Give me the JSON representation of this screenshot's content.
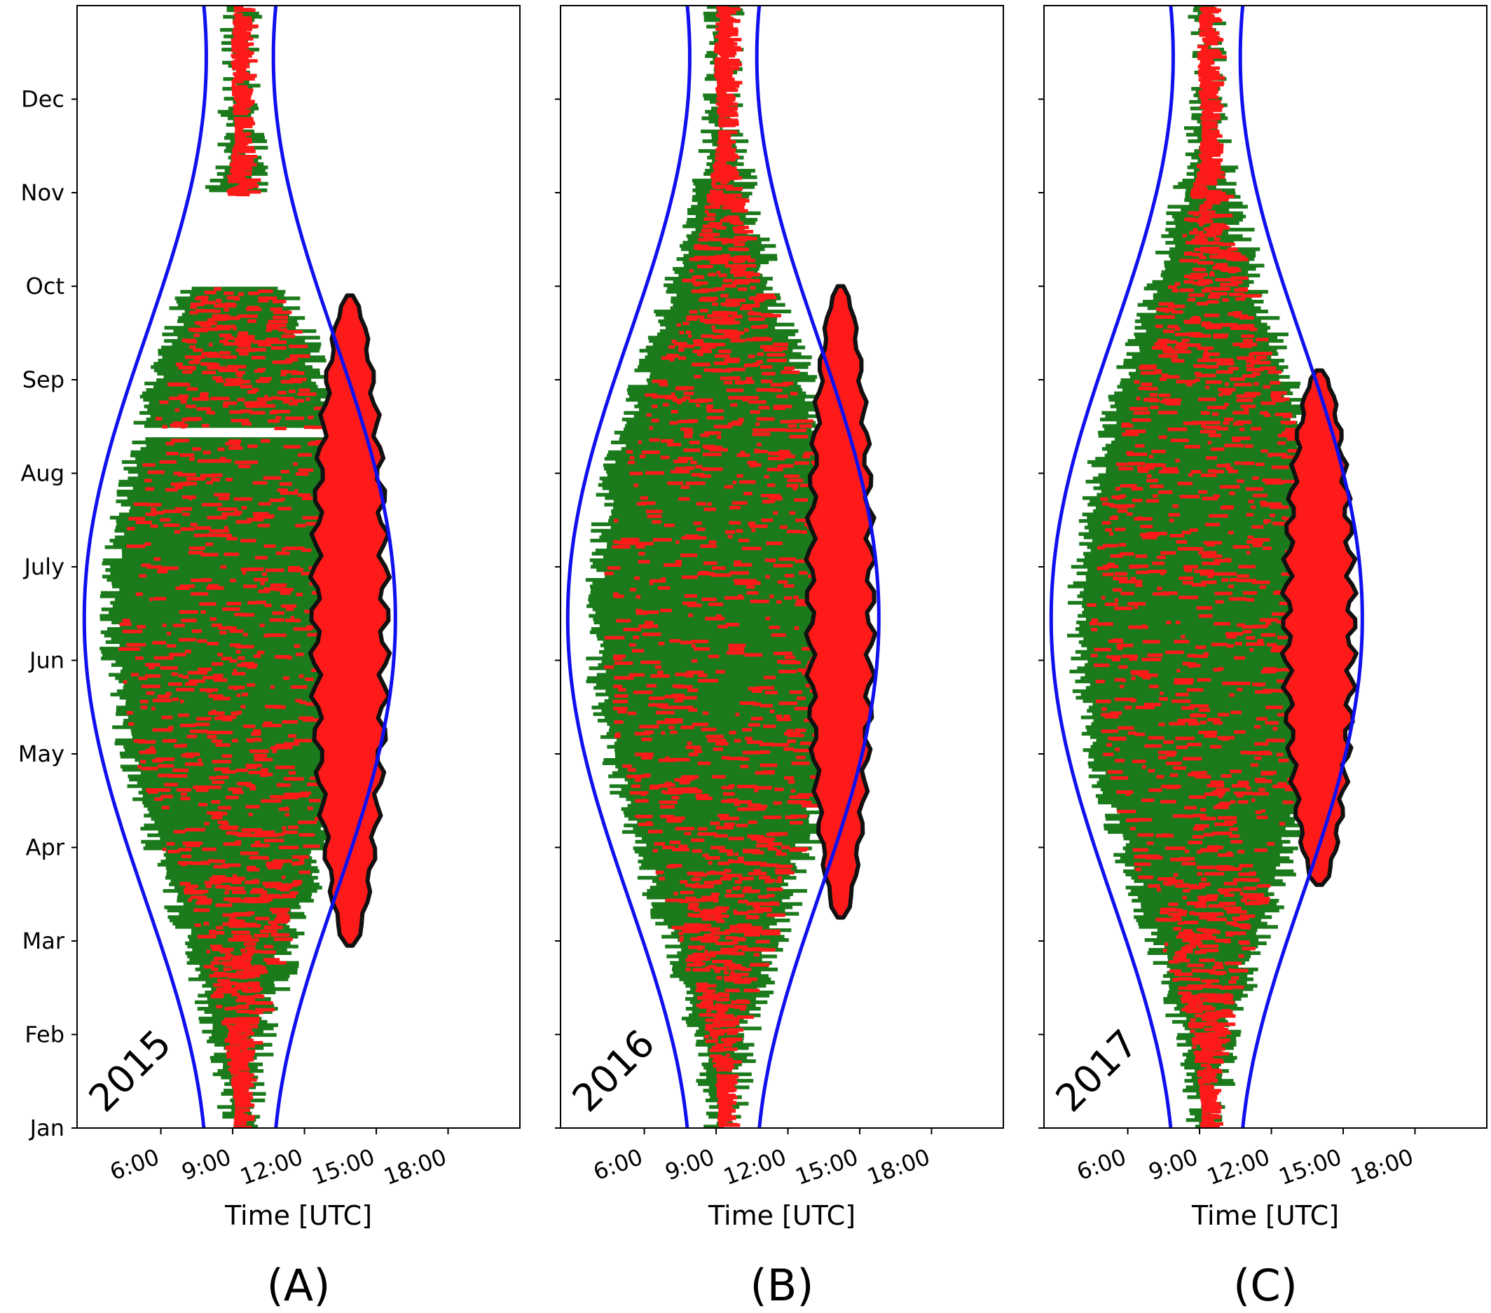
{
  "chart_data": [
    {
      "type": "scatter",
      "panel_label": "(A)",
      "year": "2015",
      "xlabel": "Time [UTC]",
      "x_ticks": [
        "6:00",
        "9:00",
        "12:00",
        "15:00",
        "18:00"
      ],
      "y_ticks": [
        "Jan",
        "Feb",
        "Mar",
        "Apr",
        "May",
        "Jun",
        "July",
        "Aug",
        "Sep",
        "Oct",
        "Nov",
        "Dec"
      ],
      "xlim_hours": [
        2.5,
        21
      ],
      "ylim_month": [
        0,
        12
      ],
      "data_gaps_month": [
        [
          8.99,
          9.99
        ],
        [
          7.38,
          7.49
        ]
      ],
      "contour_start_month": 1.95,
      "contour_end_month": 8.9,
      "contour_center_hour": 13.9,
      "contour_max_halfwidth_hours": 1.45,
      "colors": {
        "daylight_bound": "#1010ee",
        "data": "#1b7a1b",
        "flagged": "#ff1a1a",
        "contour": "#111111"
      }
    },
    {
      "type": "scatter",
      "panel_label": "(B)",
      "year": "2016",
      "xlabel": "Time [UTC]",
      "x_ticks": [
        "6:00",
        "9:00",
        "12:00",
        "15:00",
        "18:00"
      ],
      "y_ticks": [
        "Jan",
        "Feb",
        "Mar",
        "Apr",
        "May",
        "Jun",
        "July",
        "Aug",
        "Sep",
        "Oct",
        "Nov",
        "Dec"
      ],
      "xlim_hours": [
        2.5,
        21
      ],
      "ylim_month": [
        0,
        12
      ],
      "data_gaps_month": [],
      "contour_start_month": 2.25,
      "contour_end_month": 9.0,
      "contour_center_hour": 14.2,
      "contour_max_halfwidth_hours": 1.25,
      "colors": {
        "daylight_bound": "#1010ee",
        "data": "#1b7a1b",
        "flagged": "#ff1a1a",
        "contour": "#111111"
      }
    },
    {
      "type": "scatter",
      "panel_label": "(C)",
      "year": "2017",
      "xlabel": "Time [UTC]",
      "x_ticks": [
        "6:00",
        "9:00",
        "12:00",
        "15:00",
        "18:00"
      ],
      "y_ticks": [
        "Jan",
        "Feb",
        "Mar",
        "Apr",
        "May",
        "Jun",
        "July",
        "Aug",
        "Sep",
        "Oct",
        "Nov",
        "Dec"
      ],
      "xlim_hours": [
        2.5,
        21
      ],
      "ylim_month": [
        0,
        12
      ],
      "data_gaps_month": [],
      "contour_start_month": 2.6,
      "contour_end_month": 8.1,
      "contour_center_hour": 14.0,
      "contour_max_halfwidth_hours": 1.35,
      "colors": {
        "daylight_bound": "#1010ee",
        "data": "#1b7a1b",
        "flagged": "#ff1a1a",
        "contour": "#111111"
      }
    }
  ]
}
